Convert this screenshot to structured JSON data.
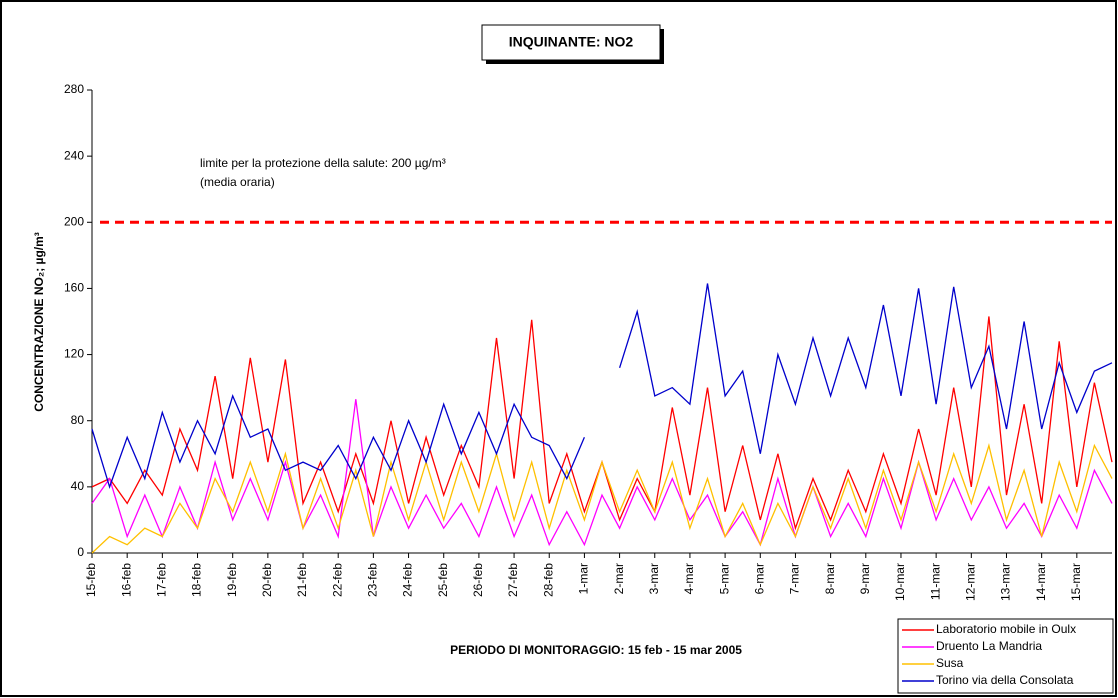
{
  "chart_data": {
    "type": "line",
    "title": "INQUINANTE: NO2",
    "y_label": "CONCENTRAZIONE NO₂;  µg/m³",
    "x_label": "PERIODO DI MONITORAGGIO: 15 feb - 15 mar 2005",
    "annotations": [
      "limite per la protezione della salute: 200  µg/m³",
      "(media oraria)"
    ],
    "reference_line": {
      "value": 200,
      "color": "#ff0000"
    },
    "x": [
      0,
      0.5,
      1,
      1.5,
      2,
      2.5,
      3,
      3.5,
      4,
      4.5,
      5,
      5.5,
      6,
      6.5,
      7,
      7.5,
      8,
      8.5,
      9,
      9.5,
      10,
      10.5,
      11,
      11.5,
      12,
      12.5,
      13,
      13.5,
      14,
      14.5,
      15,
      15.5,
      16,
      16.5,
      17,
      17.5,
      18,
      18.5,
      19,
      19.5,
      20,
      20.5,
      21,
      21.5,
      22,
      22.5,
      23,
      23.5,
      24,
      24.5,
      25,
      25.5,
      26,
      26.5,
      27,
      27.5,
      28,
      28.5,
      29
    ],
    "xlim": [
      0,
      29
    ],
    "xticks": [
      {
        "value": 0,
        "label": "15-feb"
      },
      {
        "value": 1,
        "label": "16-feb"
      },
      {
        "value": 2,
        "label": "17-feb"
      },
      {
        "value": 3,
        "label": "18-feb"
      },
      {
        "value": 4,
        "label": "19-feb"
      },
      {
        "value": 5,
        "label": "20-feb"
      },
      {
        "value": 6,
        "label": "21-feb"
      },
      {
        "value": 7,
        "label": "22-feb"
      },
      {
        "value": 8,
        "label": "23-feb"
      },
      {
        "value": 9,
        "label": "24-feb"
      },
      {
        "value": 10,
        "label": "25-feb"
      },
      {
        "value": 11,
        "label": "26-feb"
      },
      {
        "value": 12,
        "label": "27-feb"
      },
      {
        "value": 13,
        "label": "28-feb"
      },
      {
        "value": 14,
        "label": "1-mar"
      },
      {
        "value": 15,
        "label": "2-mar"
      },
      {
        "value": 16,
        "label": "3-mar"
      },
      {
        "value": 17,
        "label": "4-mar"
      },
      {
        "value": 18,
        "label": "5-mar"
      },
      {
        "value": 19,
        "label": "6-mar"
      },
      {
        "value": 20,
        "label": "7-mar"
      },
      {
        "value": 21,
        "label": "8-mar"
      },
      {
        "value": 22,
        "label": "9-mar"
      },
      {
        "value": 23,
        "label": "10-mar"
      },
      {
        "value": 24,
        "label": "11-mar"
      },
      {
        "value": 25,
        "label": "12-mar"
      },
      {
        "value": 26,
        "label": "13-mar"
      },
      {
        "value": 27,
        "label": "14-mar"
      },
      {
        "value": 28,
        "label": "15-mar"
      }
    ],
    "ylim": [
      0,
      280
    ],
    "yticks": [
      0,
      40,
      80,
      120,
      160,
      200,
      240,
      280
    ],
    "legend": "bottom-right",
    "series": [
      {
        "name": "Laboratorio mobile in Oulx",
        "color": "#ff0000",
        "values": [
          40,
          45,
          30,
          50,
          35,
          75,
          50,
          107,
          45,
          118,
          55,
          117,
          30,
          55,
          25,
          60,
          30,
          80,
          30,
          70,
          35,
          65,
          40,
          130,
          45,
          141,
          30,
          60,
          25,
          55,
          20,
          45,
          25,
          88,
          35,
          100,
          25,
          65,
          20,
          60,
          15,
          45,
          20,
          50,
          25,
          60,
          30,
          75,
          35,
          100,
          40,
          143,
          35,
          90,
          30,
          128,
          40,
          103,
          55
        ]
      },
      {
        "name": "Druento La Mandria",
        "color": "#ff00ff",
        "values": [
          30,
          45,
          10,
          35,
          10,
          40,
          15,
          55,
          20,
          45,
          20,
          55,
          15,
          35,
          10,
          93,
          10,
          40,
          15,
          35,
          15,
          30,
          10,
          40,
          10,
          35,
          5,
          25,
          5,
          35,
          15,
          40,
          20,
          45,
          20,
          35,
          10,
          25,
          5,
          45,
          10,
          40,
          10,
          30,
          10,
          45,
          15,
          55,
          20,
          45,
          20,
          40,
          15,
          30,
          10,
          35,
          15,
          50,
          30
        ]
      },
      {
        "name": "Susa",
        "color": "#ffc000",
        "values": [
          0,
          10,
          5,
          15,
          10,
          30,
          15,
          45,
          25,
          55,
          25,
          60,
          15,
          45,
          15,
          50,
          10,
          55,
          20,
          55,
          20,
          55,
          25,
          60,
          20,
          55,
          15,
          50,
          20,
          55,
          25,
          50,
          25,
          55,
          15,
          45,
          10,
          30,
          5,
          30,
          10,
          40,
          15,
          45,
          15,
          50,
          20,
          55,
          25,
          60,
          30,
          65,
          20,
          50,
          10,
          55,
          25,
          65,
          45
        ]
      },
      {
        "name": "Torino via della Consolata",
        "color": "#0000cc",
        "values": [
          75,
          40,
          70,
          45,
          85,
          55,
          80,
          60,
          95,
          70,
          75,
          50,
          55,
          50,
          65,
          45,
          70,
          50,
          80,
          55,
          90,
          60,
          85,
          60,
          90,
          70,
          65,
          45,
          70,
          null,
          112,
          146,
          95,
          100,
          90,
          163,
          95,
          110,
          60,
          120,
          90,
          130,
          95,
          130,
          100,
          150,
          95,
          160,
          90,
          161,
          100,
          125,
          75,
          140,
          75,
          115,
          85,
          110,
          115
        ]
      }
    ]
  }
}
